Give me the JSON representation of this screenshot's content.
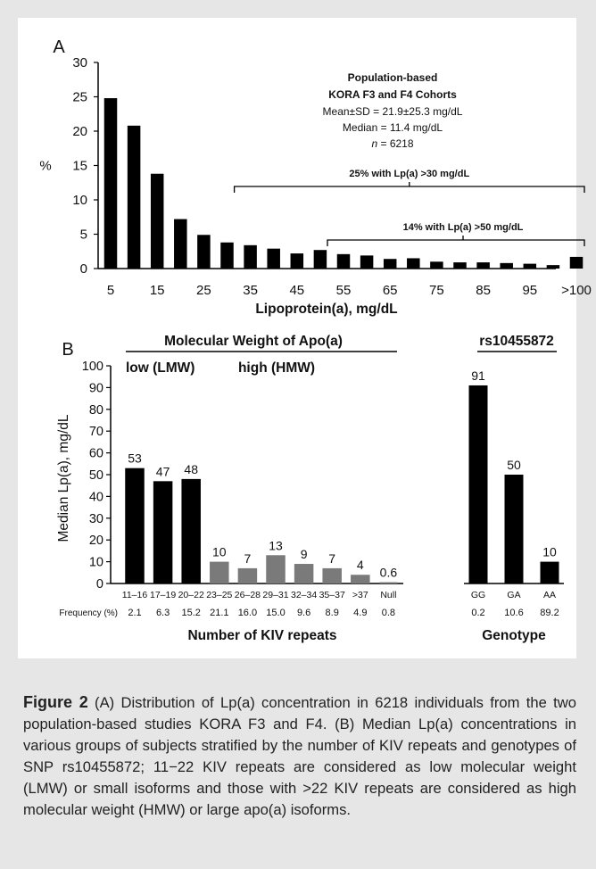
{
  "chart_data": [
    {
      "type": "bar",
      "panel_label": "A",
      "ylabel": "%",
      "xlabel": "Lipoprotein(a), mg/dL",
      "ylim": [
        0,
        30
      ],
      "yticks": [
        "0",
        "5",
        "10",
        "15",
        "20",
        "25",
        "30"
      ],
      "x_tick_labels": [
        "5",
        "15",
        "25",
        "35",
        "45",
        "55",
        "65",
        "75",
        "85",
        "95",
        ">100"
      ],
      "values": [
        24.8,
        20.8,
        13.8,
        7.2,
        4.9,
        3.8,
        3.4,
        2.9,
        2.2,
        2.7,
        2.1,
        1.9,
        1.4,
        1.5,
        1.0,
        0.9,
        0.9,
        0.8,
        0.7,
        0.5,
        1.7
      ],
      "bar_color": "#000000",
      "annotation": {
        "title_line1": "Population-based",
        "title_line2": "KORA F3 and F4 Cohorts",
        "mean_sd": "Mean±SD = 21.9±25.3 mg/dL",
        "median": "Median = 11.4 mg/dL",
        "n_label": "n",
        "n_value": " = 6218"
      },
      "brackets": [
        {
          "label": "25% with Lp(a) >30 mg/dL",
          "from_bar": 6,
          "to_bar": 20
        },
        {
          "label": "14% with Lp(a) >50 mg/dL",
          "from_bar": 10,
          "to_bar": 20
        }
      ]
    },
    {
      "type": "bar",
      "panel_label": "B",
      "title": "Molecular Weight of Apo(a)",
      "group_labels": {
        "low": "low (LMW)",
        "high": "high (HMW)"
      },
      "ylabel": "Median Lp(a), mg/dL",
      "xlabel": "Number of KIV repeats",
      "ylim": [
        0,
        100
      ],
      "yticks": [
        "0",
        "10",
        "20",
        "30",
        "40",
        "50",
        "60",
        "70",
        "80",
        "90",
        "100"
      ],
      "frequency_label": "Frequency (%)",
      "categories": [
        "11–16",
        "17–19",
        "20–22",
        "23–25",
        "26–28",
        "29–31",
        "32–34",
        "35–37",
        ">37",
        "Null"
      ],
      "values": [
        53,
        47,
        48,
        10,
        7,
        13,
        9,
        7,
        4,
        0.6
      ],
      "value_labels": [
        "53",
        "47",
        "48",
        "10",
        "7",
        "13",
        "9",
        "7",
        "4",
        "0.6"
      ],
      "frequencies": [
        "2.1",
        "6.3",
        "15.2",
        "21.1",
        "16.0",
        "15.0",
        "9.6",
        "8.9",
        "4.9",
        "0.8"
      ],
      "colors": [
        "#000000",
        "#000000",
        "#000000",
        "#7a7a7a",
        "#7a7a7a",
        "#7a7a7a",
        "#7a7a7a",
        "#7a7a7a",
        "#7a7a7a",
        "#7a7a7a"
      ]
    },
    {
      "type": "bar",
      "title": "rs10455872",
      "xlabel": "Genotype",
      "ylim": [
        0,
        100
      ],
      "categories": [
        "GG",
        "GA",
        "AA"
      ],
      "values": [
        91,
        50,
        10
      ],
      "value_labels": [
        "91",
        "50",
        "10"
      ],
      "frequencies": [
        "0.2",
        "10.6",
        "89.2"
      ],
      "bar_color": "#000000"
    }
  ],
  "caption": {
    "figure_label": "Figure 2",
    "text": "  (A) Distribution of Lp(a) concentration in 6218 individuals from the two population-based studies KORA F3 and F4. (B) Median Lp(a) concentrations in various groups of subjects stratified by the number of KIV repeats and genotypes of SNP rs10455872; 11−22 KIV repeats are considered as low molecular weight (LMW) or small isoforms and those with >22 KIV repeats are considered as high molecular weight (HMW) or large apo(a) isoforms."
  }
}
